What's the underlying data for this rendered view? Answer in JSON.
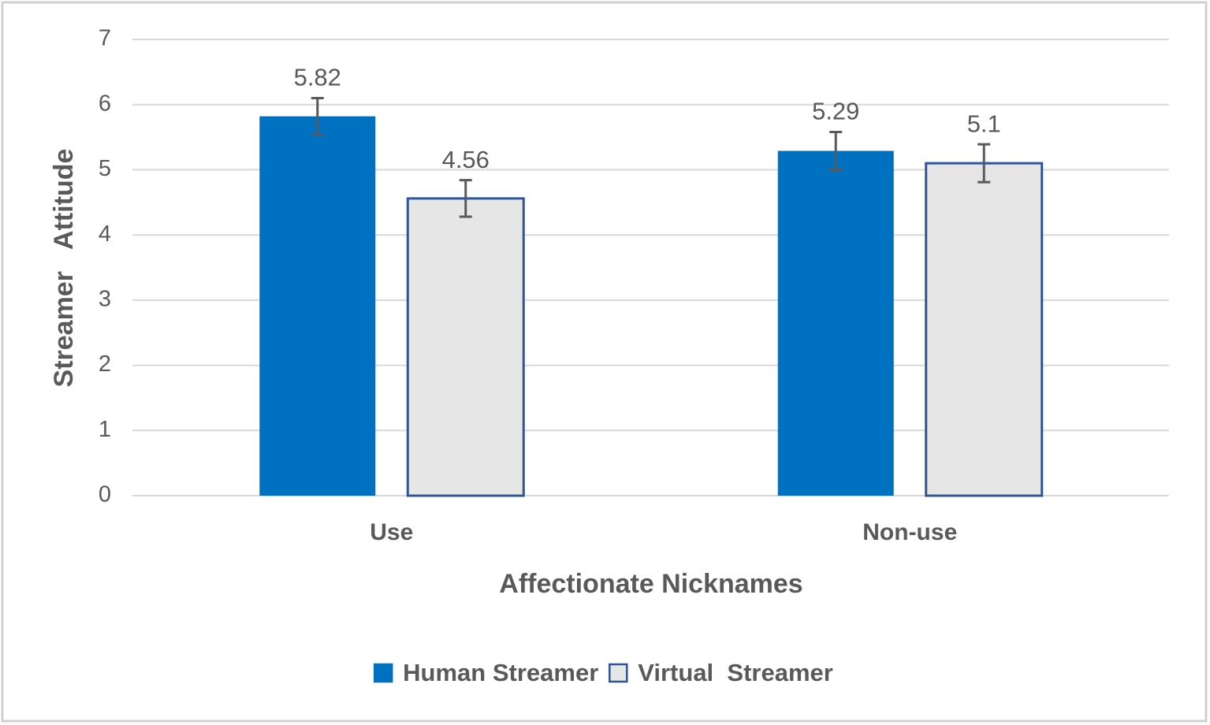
{
  "chart_data": {
    "type": "bar",
    "categories": [
      "Use",
      "Non-use"
    ],
    "series": [
      {
        "name": "Human Streamer",
        "color": "#0070c0",
        "values": [
          5.82,
          5.29
        ],
        "errors": [
          0.28,
          0.29
        ]
      },
      {
        "name": "Virtual  Streamer",
        "color": "#e7e6e6",
        "edgecolor": "#2f5597",
        "values": [
          4.56,
          5.1
        ],
        "errors": [
          0.28,
          0.29
        ]
      }
    ],
    "xlabel": "Affectionate Nicknames",
    "ylabel": "Streamer   Attitude",
    "ylim": [
      0,
      7
    ],
    "yticks": [
      0,
      1,
      2,
      3,
      4,
      5,
      6,
      7
    ],
    "grid": true,
    "legend": "bottom"
  }
}
